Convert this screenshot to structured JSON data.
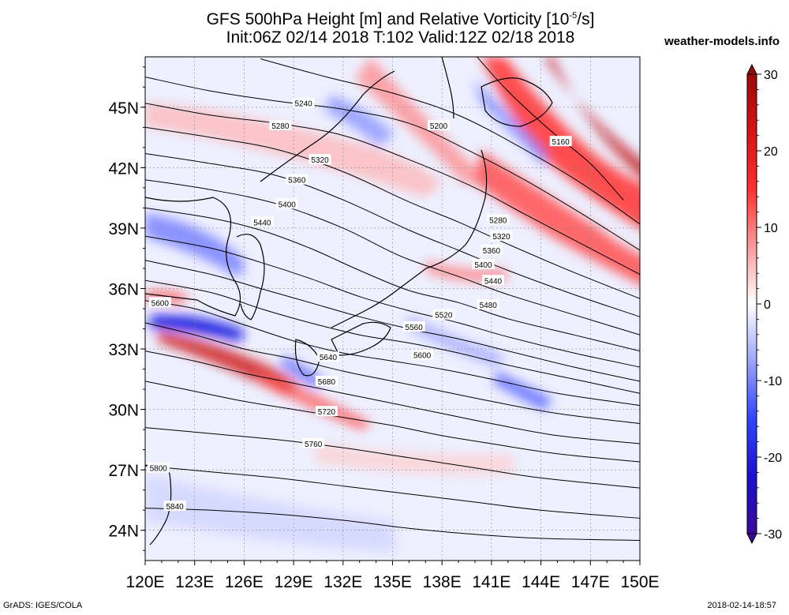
{
  "title": {
    "line1a": "GFS 500hPa Height [m] and Relative Vorticity [10",
    "line1sup": "-5",
    "line1b": "/s]",
    "line2": "Init:06Z 02/14 2018 T:102 Valid:12Z 02/18 2018"
  },
  "site_label": "weather-models.info",
  "footer": {
    "left": "GrADS: IGES/COLA",
    "right": "2018-02-14-18:57"
  },
  "map": {
    "lon_min": 120,
    "lon_max": 150,
    "lat_min": 22.5,
    "lat_max": 47.5,
    "lon_ticks": [
      "120E",
      "123E",
      "126E",
      "129E",
      "132E",
      "135E",
      "138E",
      "141E",
      "144E",
      "147E",
      "150E"
    ],
    "lat_ticks": [
      "24N",
      "27N",
      "30N",
      "33N",
      "36N",
      "39N",
      "42N",
      "45N"
    ],
    "lon_tick_values": [
      120,
      123,
      126,
      129,
      132,
      135,
      138,
      141,
      144,
      147,
      150
    ],
    "lat_tick_values": [
      24,
      27,
      30,
      33,
      36,
      39,
      42,
      45
    ]
  },
  "colorbar": {
    "labels": [
      "30",
      "20",
      "10",
      "0",
      "-10",
      "-20",
      "-30"
    ],
    "values": [
      30,
      20,
      10,
      0,
      -10,
      -20,
      -30
    ],
    "colors": [
      "#9b0a0a",
      "#d81313",
      "#ff3030",
      "#ff9a9a",
      "#ffffff",
      "#9aa4ff",
      "#3045ff",
      "#1a10d0",
      "#3a0a9b"
    ]
  },
  "contours": [
    {
      "label": "5160",
      "points": [
        [
          139.8,
          47.8
        ],
        [
          142,
          45.8
        ],
        [
          144.5,
          43.9
        ],
        [
          147,
          42.2
        ],
        [
          149,
          40.4
        ]
      ]
    },
    {
      "label": "5200",
      "points": [
        [
          127,
          47.4
        ],
        [
          131,
          46.5
        ],
        [
          135,
          45.7
        ],
        [
          139,
          44.6
        ],
        [
          143,
          42.9
        ],
        [
          146.5,
          41.2
        ],
        [
          150,
          39.2
        ]
      ]
    },
    {
      "label": "5240",
      "points": [
        [
          120,
          46.5
        ],
        [
          124,
          45.8
        ],
        [
          128,
          45.3
        ],
        [
          132,
          44.9
        ],
        [
          136,
          44.2
        ],
        [
          139.5,
          42.9
        ],
        [
          143,
          41.4
        ],
        [
          146.5,
          39.7
        ],
        [
          150,
          37.9
        ]
      ]
    },
    {
      "label": "5280",
      "points": [
        [
          120,
          45.2
        ],
        [
          124,
          44.6
        ],
        [
          128,
          44.2
        ],
        [
          132,
          43.6
        ],
        [
          136,
          42.4
        ],
        [
          140,
          41
        ],
        [
          143,
          39.7
        ],
        [
          146.5,
          38.2
        ],
        [
          150,
          36.7
        ]
      ]
    },
    {
      "label": "5320",
      "points": [
        [
          120,
          44
        ],
        [
          124,
          43.5
        ],
        [
          128,
          42.9
        ],
        [
          132,
          41.8
        ],
        [
          136,
          40.3
        ],
        [
          139,
          39.3
        ],
        [
          142,
          38.2
        ],
        [
          146,
          36.8
        ],
        [
          150,
          35.5
        ]
      ]
    },
    {
      "label": "5360",
      "points": [
        [
          120,
          42.7
        ],
        [
          124,
          42.2
        ],
        [
          128,
          41.6
        ],
        [
          132,
          40.4
        ],
        [
          136,
          38.9
        ],
        [
          139,
          37.9
        ],
        [
          142,
          36.9
        ],
        [
          146,
          35.7
        ],
        [
          150,
          34.6
        ]
      ]
    },
    {
      "label": "5400",
      "points": [
        [
          120,
          41.4
        ],
        [
          124,
          40.9
        ],
        [
          128,
          40.2
        ],
        [
          132,
          39
        ],
        [
          135.5,
          37.6
        ],
        [
          139,
          36.6
        ],
        [
          142,
          35.7
        ],
        [
          146,
          34.7
        ],
        [
          150,
          33.7
        ]
      ]
    },
    {
      "label": "5440",
      "points": [
        [
          120,
          40
        ],
        [
          124,
          39.5
        ],
        [
          127,
          38.9
        ],
        [
          130,
          38
        ],
        [
          133,
          36.9
        ],
        [
          136,
          35.9
        ],
        [
          139,
          35.3
        ],
        [
          142,
          34.5
        ],
        [
          146,
          33.7
        ],
        [
          150,
          32.9
        ]
      ]
    },
    {
      "label": "5480",
      "points": [
        [
          120,
          38.6
        ],
        [
          124,
          38
        ],
        [
          127,
          37.3
        ],
        [
          130,
          36.5
        ],
        [
          133,
          35.6
        ],
        [
          136,
          34.9
        ],
        [
          139,
          34.3
        ],
        [
          142,
          33.6
        ],
        [
          146,
          32.8
        ],
        [
          150,
          32.1
        ]
      ]
    },
    {
      "label": "5520",
      "points": [
        [
          120,
          37.4
        ],
        [
          124,
          36.7
        ],
        [
          127,
          36
        ],
        [
          130,
          35.3
        ],
        [
          133,
          34.6
        ],
        [
          136,
          34
        ],
        [
          139,
          33.5
        ],
        [
          142,
          32.9
        ],
        [
          146,
          32.1
        ],
        [
          150,
          31.4
        ]
      ]
    },
    {
      "label": "5560",
      "points": [
        [
          120,
          36.4
        ],
        [
          124,
          35.8
        ],
        [
          127,
          35
        ],
        [
          130,
          34.3
        ],
        [
          133,
          33.7
        ],
        [
          136,
          33.3
        ],
        [
          139,
          32.8
        ],
        [
          142,
          32.2
        ],
        [
          146,
          31.5
        ],
        [
          150,
          30.8
        ]
      ]
    },
    {
      "label": "5600",
      "points": [
        [
          120,
          35.4
        ],
        [
          123,
          35
        ],
        [
          126,
          34.2
        ],
        [
          129,
          33.4
        ],
        [
          132,
          32.8
        ],
        [
          135,
          32.4
        ],
        [
          138,
          32
        ],
        [
          141,
          31.5
        ],
        [
          145,
          30.8
        ],
        [
          150,
          30.2
        ]
      ]
    },
    {
      "label": "5640",
      "points": [
        [
          120,
          34.3
        ],
        [
          123,
          33.7
        ],
        [
          126,
          33
        ],
        [
          129,
          32.5
        ],
        [
          132,
          31.9
        ],
        [
          135,
          31.4
        ],
        [
          138,
          30.9
        ],
        [
          141,
          30.4
        ],
        [
          145,
          29.8
        ],
        [
          150,
          29.3
        ]
      ]
    },
    {
      "label": "5680",
      "points": [
        [
          120,
          32.9
        ],
        [
          123,
          32.4
        ],
        [
          126,
          31.8
        ],
        [
          129,
          31.3
        ],
        [
          132,
          30.8
        ],
        [
          135,
          30.3
        ],
        [
          138,
          29.8
        ],
        [
          141,
          29.3
        ],
        [
          145,
          28.7
        ],
        [
          150,
          28.3
        ]
      ]
    },
    {
      "label": "5720",
      "points": [
        [
          120,
          31.4
        ],
        [
          123,
          30.9
        ],
        [
          126,
          30.4
        ],
        [
          129,
          30
        ],
        [
          132,
          29.6
        ],
        [
          135,
          29.2
        ],
        [
          138,
          28.7
        ],
        [
          141,
          28.3
        ],
        [
          145,
          27.8
        ],
        [
          150,
          27.4
        ]
      ]
    },
    {
      "label": "5760",
      "points": [
        [
          120,
          29.1
        ],
        [
          124,
          28.8
        ],
        [
          128,
          28.5
        ],
        [
          132,
          28.1
        ],
        [
          136,
          27.6
        ],
        [
          140,
          27.1
        ],
        [
          144,
          26.6
        ],
        [
          150,
          26.1
        ]
      ]
    },
    {
      "label": "5800",
      "points": [
        [
          120,
          27.2
        ],
        [
          124,
          26.9
        ],
        [
          128,
          26.6
        ],
        [
          132,
          26.2
        ],
        [
          136,
          25.8
        ],
        [
          140,
          25.4
        ],
        [
          144,
          25
        ],
        [
          150,
          24.6
        ]
      ]
    },
    {
      "label": "5840",
      "points": [
        [
          120,
          25.1
        ],
        [
          124,
          25
        ],
        [
          128,
          24.8
        ],
        [
          132,
          24.5
        ],
        [
          136,
          24.1
        ],
        [
          140,
          23.8
        ],
        [
          144,
          23.6
        ],
        [
          150,
          23.5
        ]
      ]
    }
  ],
  "contour_labels": [
    {
      "text": "5160",
      "lon": 145.2,
      "lat": 43.3
    },
    {
      "text": "5200",
      "lon": 137.8,
      "lat": 44.1
    },
    {
      "text": "5240",
      "lon": 129.6,
      "lat": 45.2
    },
    {
      "text": "5280",
      "lon": 128.2,
      "lat": 44.1
    },
    {
      "text": "5320",
      "lon": 130.6,
      "lat": 42.4
    },
    {
      "text": "5360",
      "lon": 129.2,
      "lat": 41.4
    },
    {
      "text": "5400",
      "lon": 128.6,
      "lat": 40.2
    },
    {
      "text": "5440",
      "lon": 127.1,
      "lat": 39.3
    },
    {
      "text": "5280",
      "lon": 141.4,
      "lat": 39.4
    },
    {
      "text": "5320",
      "lon": 141.6,
      "lat": 38.6
    },
    {
      "text": "5360",
      "lon": 141.0,
      "lat": 37.9
    },
    {
      "text": "5400",
      "lon": 140.5,
      "lat": 37.2
    },
    {
      "text": "5440",
      "lon": 141.1,
      "lat": 36.4
    },
    {
      "text": "5480",
      "lon": 140.8,
      "lat": 35.2
    },
    {
      "text": "5520",
      "lon": 138.1,
      "lat": 34.7
    },
    {
      "text": "5560",
      "lon": 136.3,
      "lat": 34.1
    },
    {
      "text": "5600",
      "lon": 136.8,
      "lat": 32.7
    },
    {
      "text": "5600",
      "lon": 120.9,
      "lat": 35.3
    },
    {
      "text": "5640",
      "lon": 131.1,
      "lat": 32.6
    },
    {
      "text": "5680",
      "lon": 131.0,
      "lat": 31.4
    },
    {
      "text": "5720",
      "lon": 131.0,
      "lat": 29.9
    },
    {
      "text": "5760",
      "lon": 130.2,
      "lat": 28.3
    },
    {
      "text": "5800",
      "lon": 120.8,
      "lat": 27.1
    },
    {
      "text": "5840",
      "lon": 121.8,
      "lat": 25.2
    }
  ]
}
